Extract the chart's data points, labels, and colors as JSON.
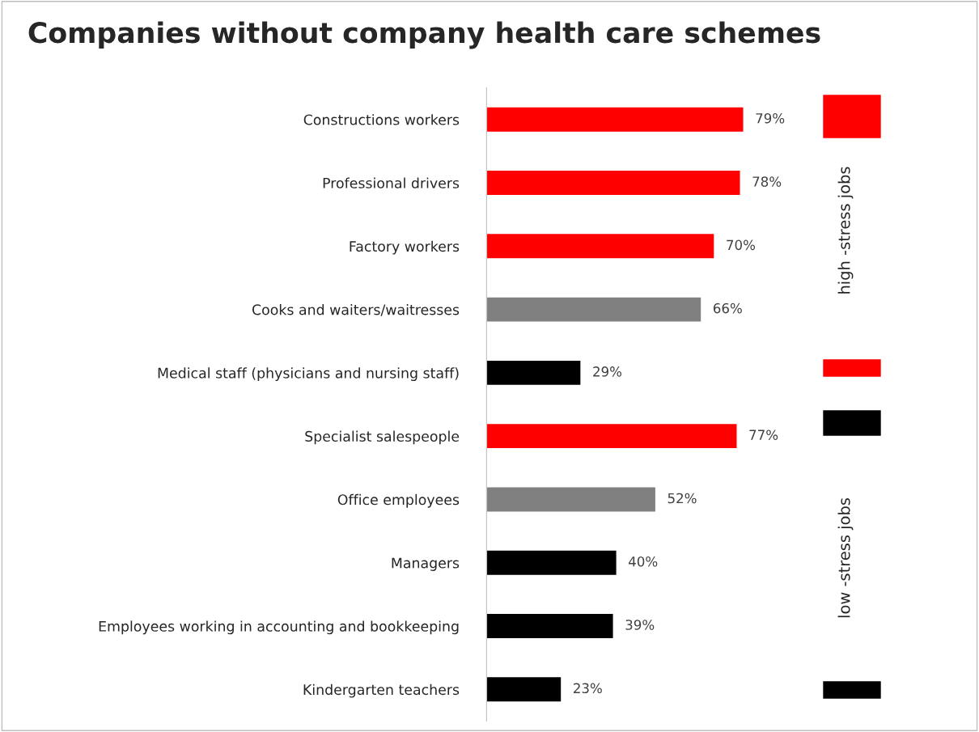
{
  "chart_data": {
    "type": "bar",
    "orientation": "horizontal",
    "title": "Companies without company health care schemes",
    "categories": [
      "Constructions workers",
      "Professional drivers",
      "Factory workers",
      "Cooks and waiters/waitresses",
      "Medical staff (physicians and nursing staff)",
      "Specialist salespeople",
      "Office employees",
      "Managers",
      "Employees working in accounting and bookkeeping",
      "Kindergarten teachers"
    ],
    "values": [
      79,
      78,
      70,
      66,
      29,
      77,
      52,
      40,
      39,
      23
    ],
    "colors": [
      "#ff0000",
      "#ff0000",
      "#ff0000",
      "#808080",
      "#000000",
      "#ff0000",
      "#808080",
      "#000000",
      "#000000",
      "#000000"
    ],
    "value_labels": [
      "79%",
      "78%",
      "70%",
      "66%",
      "29%",
      "77%",
      "52%",
      "40%",
      "39%",
      "23%"
    ],
    "annotations": [
      "high -stress jobs",
      "low -stress jobs"
    ],
    "grid": false,
    "legend": false
  }
}
